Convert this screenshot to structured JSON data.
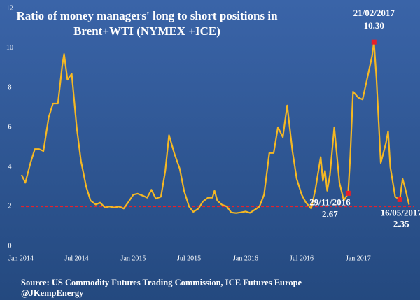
{
  "chart_data": {
    "type": "line",
    "title": [
      "Ratio of  money managers' long to short positions in",
      "Brent+WTI (NYMEX +ICE)"
    ],
    "source": [
      "Source: US Commodity Futures Trading Commission, ICE Futures Europe",
      "@JKempEnergy"
    ],
    "x": [
      "2014-01-03",
      "2014-01-15",
      "2014-02-01",
      "2014-02-15",
      "2014-03-01",
      "2014-03-15",
      "2014-04-01",
      "2014-04-15",
      "2014-05-01",
      "2014-05-15",
      "2014-05-21",
      "2014-06-01",
      "2014-06-15",
      "2014-07-01",
      "2014-07-15",
      "2014-08-01",
      "2014-08-15",
      "2014-09-01",
      "2014-09-15",
      "2014-10-01",
      "2014-10-15",
      "2014-11-01",
      "2014-11-15",
      "2014-12-01",
      "2014-12-15",
      "2015-01-01",
      "2015-01-15",
      "2015-02-01",
      "2015-02-15",
      "2015-03-01",
      "2015-03-15",
      "2015-04-01",
      "2015-04-15",
      "2015-04-27",
      "2015-05-15",
      "2015-06-01",
      "2015-06-15",
      "2015-07-01",
      "2015-07-15",
      "2015-08-01",
      "2015-08-15",
      "2015-09-01",
      "2015-09-15",
      "2015-09-22",
      "2015-10-01",
      "2015-10-15",
      "2015-11-01",
      "2015-11-15",
      "2015-12-01",
      "2015-12-15",
      "2016-01-01",
      "2016-01-15",
      "2016-02-01",
      "2016-02-15",
      "2016-03-01",
      "2016-03-18",
      "2016-04-01",
      "2016-04-15",
      "2016-05-01",
      "2016-05-15",
      "2016-06-01",
      "2016-06-15",
      "2016-07-01",
      "2016-07-15",
      "2016-08-01",
      "2016-08-15",
      "2016-09-01",
      "2016-09-08",
      "2016-09-15",
      "2016-09-22",
      "2016-10-01",
      "2016-10-15",
      "2016-11-01",
      "2016-11-15",
      "2016-11-29",
      "2016-12-06",
      "2016-12-15",
      "2017-01-01",
      "2017-01-15",
      "2017-02-01",
      "2017-02-15",
      "2017-02-21",
      "2017-03-01",
      "2017-03-15",
      "2017-04-01",
      "2017-04-08",
      "2017-04-15",
      "2017-05-01",
      "2017-05-16",
      "2017-05-25",
      "2017-06-01",
      "2017-06-15"
    ],
    "series": [
      {
        "color": "#f5b823",
        "values": [
          3.6,
          3.2,
          4.2,
          4.9,
          4.9,
          4.8,
          6.5,
          7.2,
          7.2,
          9.1,
          9.7,
          8.4,
          8.7,
          6.0,
          4.3,
          3.0,
          2.3,
          2.1,
          2.2,
          1.95,
          2.0,
          1.95,
          2.0,
          1.9,
          2.2,
          2.6,
          2.65,
          2.55,
          2.45,
          2.85,
          2.4,
          2.5,
          3.8,
          5.6,
          4.65,
          3.9,
          2.8,
          2.0,
          1.73,
          1.9,
          2.25,
          2.45,
          2.45,
          2.8,
          2.3,
          2.1,
          2.0,
          1.7,
          1.67,
          1.7,
          1.75,
          1.68,
          1.85,
          2.0,
          2.6,
          4.7,
          4.7,
          6.0,
          5.5,
          7.1,
          4.8,
          3.4,
          2.6,
          2.2,
          1.9,
          2.9,
          4.5,
          3.3,
          3.8,
          2.8,
          3.6,
          6.0,
          3.2,
          2.3,
          2.67,
          4.5,
          7.8,
          7.5,
          7.4,
          8.6,
          9.6,
          10.3,
          8.5,
          4.2,
          5.2,
          5.8,
          4.0,
          2.5,
          2.35,
          3.4,
          3.0,
          2.1
        ]
      }
    ],
    "xlim": [
      "2014-01-01",
      "2017-06-30"
    ],
    "xticks": [
      {
        "value": "2014-01-01",
        "label": "Jan 2014"
      },
      {
        "value": "2014-07-01",
        "label": "Jul 2014"
      },
      {
        "value": "2015-01-01",
        "label": "Jan 2015"
      },
      {
        "value": "2015-07-01",
        "label": "Jul 2015"
      },
      {
        "value": "2016-01-01",
        "label": "Jan 2016"
      },
      {
        "value": "2016-07-01",
        "label": "Jul 2016"
      },
      {
        "value": "2017-01-01",
        "label": "Jan 2017"
      }
    ],
    "ylim": [
      0,
      12
    ],
    "yticks": [
      0,
      2,
      4,
      6,
      8,
      10,
      12
    ],
    "reference_line": {
      "value": 2,
      "color": "#e8202a"
    },
    "annotations": [
      {
        "x": "2016-11-29",
        "y": 2.67,
        "date_label": "29/11/2016",
        "value_label": "2.67",
        "color": "#e8202a"
      },
      {
        "x": "2017-02-21",
        "y": 10.3,
        "date_label": "21/02/2017",
        "value_label": "10.30",
        "color": "#e8202a"
      },
      {
        "x": "2017-05-16",
        "y": 2.35,
        "date_label": "16/05/2017",
        "value_label": "2.35",
        "color": "#e8202a"
      }
    ]
  }
}
